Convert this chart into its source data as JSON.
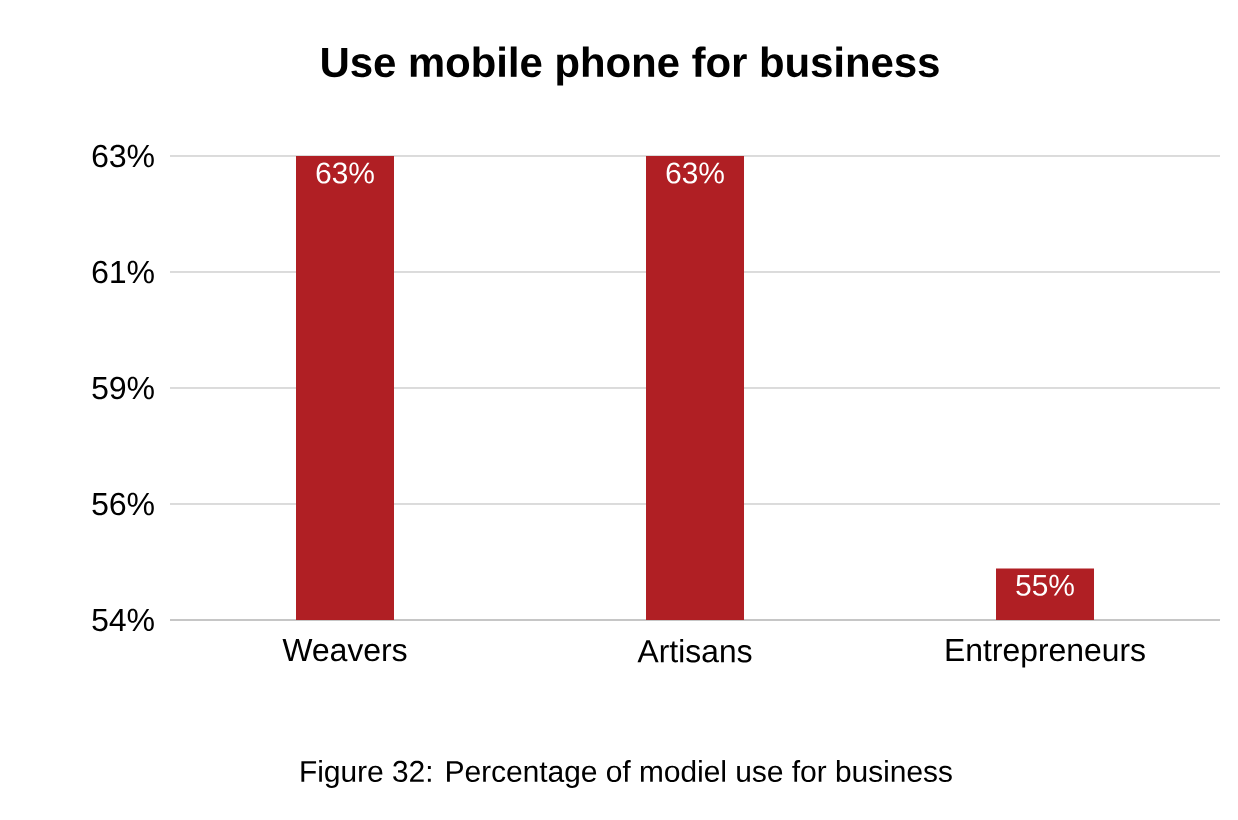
{
  "chart_data": {
    "type": "bar",
    "title": "Use mobile phone for business",
    "categories": [
      "Weavers",
      "Artisans",
      "Entrepreneurs"
    ],
    "values": [
      63,
      63,
      55
    ],
    "color": "#b01f24",
    "value_labels": [
      "63%",
      "63%",
      "55%"
    ],
    "ylim": [
      54,
      63
    ],
    "yticks": [
      {
        "value": 54,
        "label": "54%"
      },
      {
        "value": 56.25,
        "label": "56%"
      },
      {
        "value": 58.5,
        "label": "59%"
      },
      {
        "value": 60.75,
        "label": "61%"
      },
      {
        "value": 63,
        "label": "63%"
      }
    ],
    "grid": "y",
    "annotations": [
      "Figure 32: Percentage of modiel use for business"
    ]
  }
}
